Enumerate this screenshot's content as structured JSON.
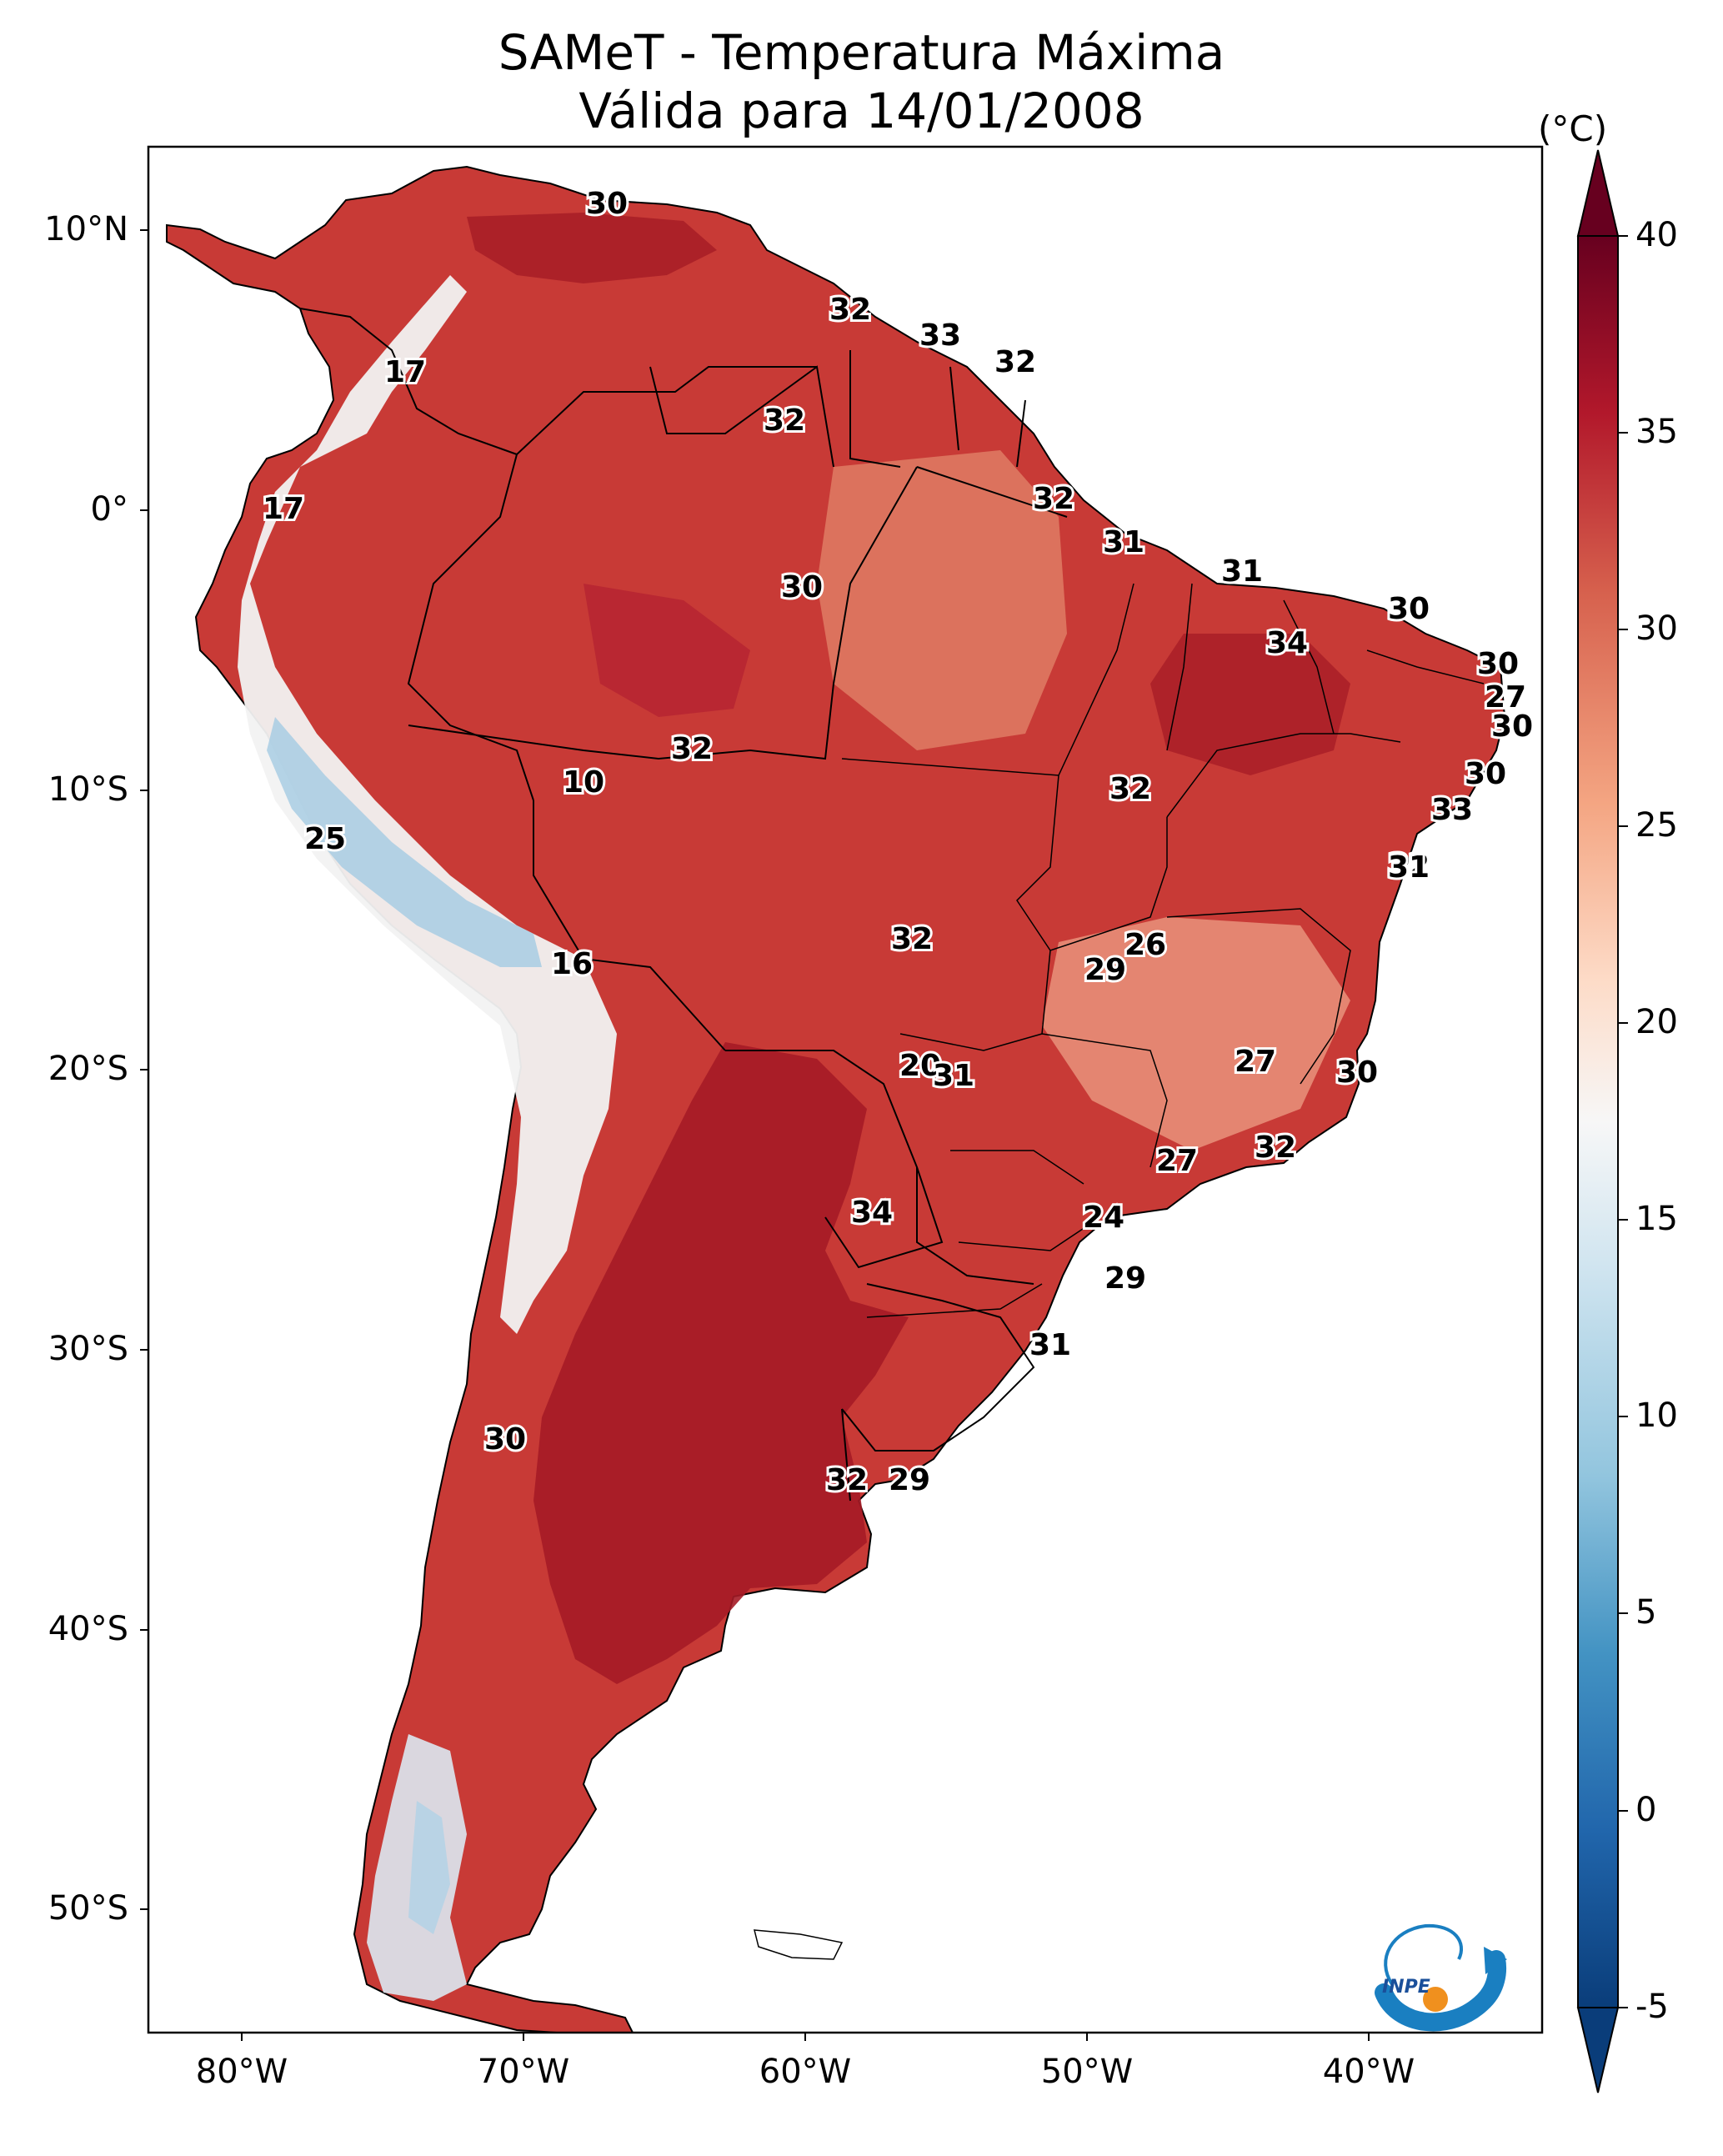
{
  "map": {
    "title_line1": "SAMeT - Temperatura Máxima",
    "title_line2": "Válida para 14/01/2008",
    "lat_labels": [
      "10°N",
      "0°",
      "10°S",
      "20°S",
      "30°S",
      "40°S",
      "50°S"
    ],
    "lon_labels": [
      "80°W",
      "70°W",
      "60°W",
      "50°W",
      "40°W"
    ],
    "colorbar": {
      "unit": "(°C)",
      "ticks": [
        "40",
        "35",
        "30",
        "25",
        "20",
        "15",
        "10",
        "5",
        "0",
        "-5"
      ],
      "min": -5,
      "max": 40,
      "colors": [
        "#0a3d7a",
        "#2166ac",
        "#4393c3",
        "#92c5de",
        "#d1e5f0",
        "#f7f7f7",
        "#fddbc7",
        "#f4a582",
        "#d6604d",
        "#b2182b",
        "#67001f"
      ]
    },
    "station_labels": [
      "30",
      "32",
      "33",
      "32",
      "17",
      "32",
      "17",
      "32",
      "31",
      "30",
      "31",
      "30",
      "34",
      "30",
      "27",
      "30",
      "32",
      "30",
      "10",
      "32",
      "33",
      "32",
      "25",
      "31",
      "26",
      "32",
      "16",
      "29",
      "27",
      "20",
      "30",
      "31",
      "32",
      "27",
      "34",
      "24",
      "29",
      "31",
      "30",
      "32",
      "29"
    ],
    "logo_text": "INPE"
  }
}
